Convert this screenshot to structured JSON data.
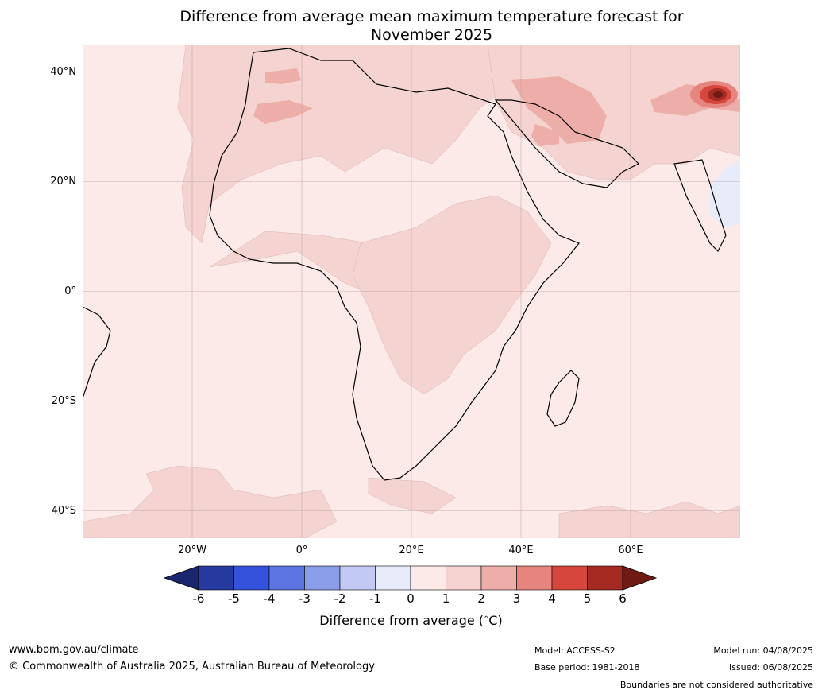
{
  "title": {
    "line1": "Difference from average mean maximum temperature forecast for",
    "line2": "November 2025"
  },
  "map": {
    "projection": "equirectangular",
    "lon_range": [
      -40,
      80
    ],
    "lat_range": [
      -45,
      45
    ],
    "lat_ticks": [
      "40°N",
      "20°N",
      "0°",
      "20°S",
      "40°S"
    ],
    "lon_ticks": [
      "20°W",
      "0°",
      "20°E",
      "40°E",
      "60°E"
    ],
    "colors": {
      "ocean_baseline": "#fbeae8",
      "anomaly_1_2": "#f4d3d0",
      "anomaly_2_3": "#edaea9",
      "anomaly_3_4": "#e6857f",
      "anomaly_4_5": "#d6463d",
      "anomaly_5_6": "#a52a22",
      "anomaly_cool": "#e8ecfa",
      "coastline": "#000000",
      "borders": "#888888"
    }
  },
  "colorbar": {
    "labels": [
      "-6",
      "-5",
      "-4",
      "-3",
      "-2",
      "-1",
      "0",
      "1",
      "2",
      "3",
      "4",
      "5",
      "6"
    ],
    "colors": [
      "#26399f",
      "#3552dd",
      "#5c75e2",
      "#8a9de8",
      "#c2c9f2",
      "#e8ecfa",
      "#fbeae8",
      "#f4d3d0",
      "#edaea9",
      "#e6857f",
      "#d6463d",
      "#a52a22"
    ],
    "under_color": "#1b2670",
    "over_color": "#6e1a15",
    "title": "Difference from average ($^\\circ$C)"
  },
  "footer": {
    "website": "www.bom.gov.au/climate",
    "copyright": "© Commonwealth of Australia 2025, Australian Bureau of Meteorology",
    "model": "Model: ACCESS-S2",
    "base_period": "Base period: 1981-2018",
    "model_run": "Model run: 04/08/2025",
    "issued": "Issued: 06/08/2025",
    "disclaimer": "Boundaries are not considered authoritative"
  }
}
